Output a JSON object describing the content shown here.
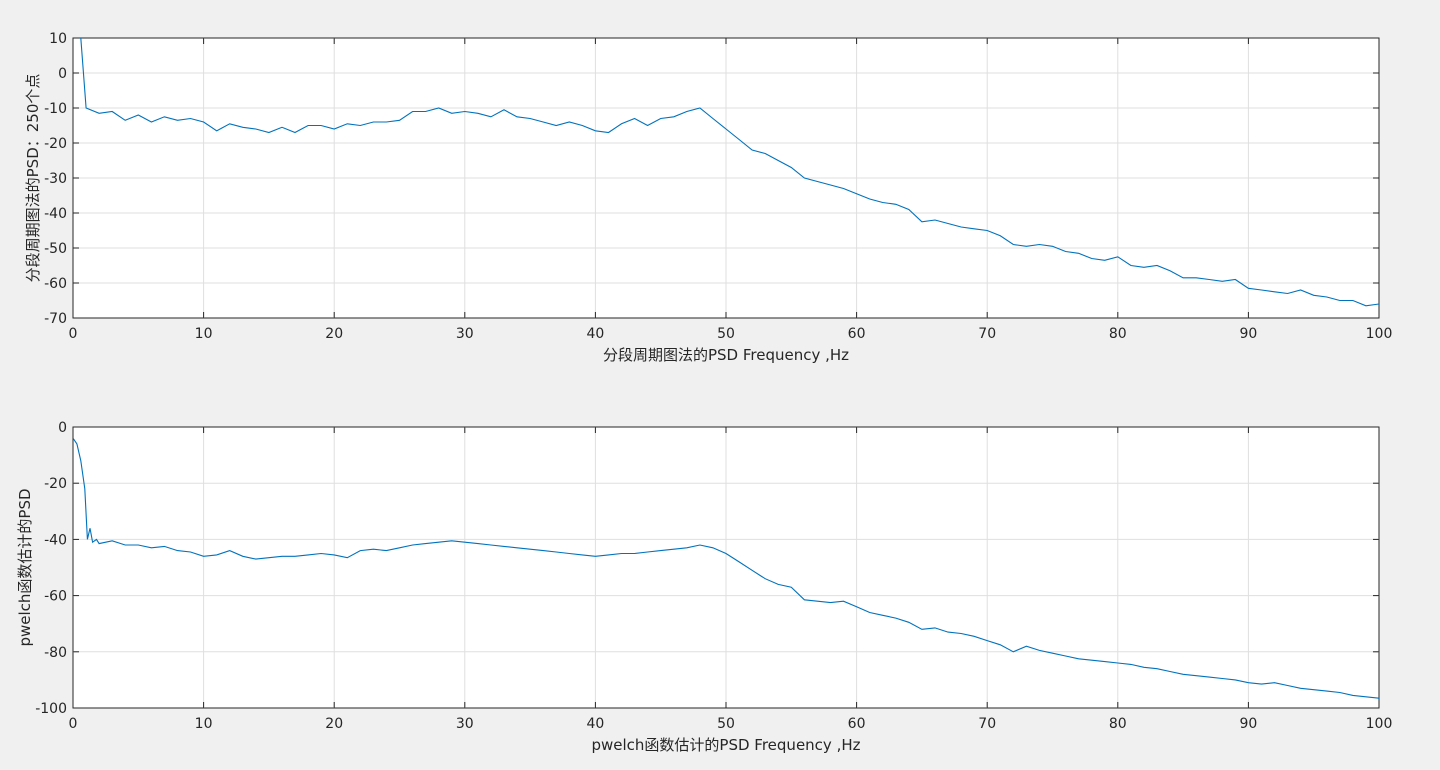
{
  "chart_data": [
    {
      "type": "line",
      "xlabel": "分段周期图法的PSD Frequency ,Hz",
      "ylabel": "分段周期图法的PSD：250个点",
      "xlim": [
        0,
        100
      ],
      "ylim": [
        -70,
        10
      ],
      "xticks": [
        0,
        10,
        20,
        30,
        40,
        50,
        60,
        70,
        80,
        90,
        100
      ],
      "yticks": [
        -70,
        -60,
        -50,
        -40,
        -30,
        -20,
        -10,
        0,
        10
      ],
      "grid": true,
      "color": "#0072bd",
      "series": [
        {
          "x": [
            0.6,
            1,
            2,
            3,
            4,
            5,
            6,
            7,
            8,
            9,
            10,
            11,
            12,
            13,
            14,
            15,
            16,
            17,
            18,
            19,
            20,
            21,
            22,
            23,
            24,
            25,
            26,
            27,
            28,
            29,
            30,
            31,
            32,
            33,
            34,
            35,
            36,
            37,
            38,
            39,
            40,
            41,
            42,
            43,
            44,
            45,
            46,
            47,
            48,
            49,
            50,
            51,
            52,
            53,
            54,
            55,
            56,
            57,
            58,
            59,
            60,
            61,
            62,
            63,
            64,
            65,
            66,
            67,
            68,
            69,
            70,
            71,
            72,
            73,
            74,
            75,
            76,
            77,
            78,
            79,
            80,
            81,
            82,
            83,
            84,
            85,
            86,
            87,
            88,
            89,
            90,
            91,
            92,
            93,
            94,
            95,
            96,
            97,
            98,
            99,
            100
          ],
          "y": [
            10,
            -10,
            -11.5,
            -11,
            -13.5,
            -12,
            -14,
            -12.5,
            -13.5,
            -13,
            -14,
            -16.5,
            -14.5,
            -15.5,
            -16,
            -17,
            -15.5,
            -17,
            -15,
            -15,
            -16,
            -14.5,
            -15,
            -14,
            -14,
            -13.5,
            -11,
            -11,
            -10,
            -11.5,
            -11,
            -11.5,
            -12.5,
            -10.5,
            -12.5,
            -13,
            -14,
            -15,
            -14,
            -15,
            -16.5,
            -17,
            -14.5,
            -13,
            -15,
            -13,
            -12.5,
            -11,
            -10,
            -13,
            -16,
            -19,
            -22,
            -23,
            -25,
            -27,
            -30,
            -31,
            -32,
            -33,
            -34.5,
            -36,
            -37,
            -37.5,
            -39,
            -42.5,
            -42,
            -43,
            -44,
            -44.5,
            -45,
            -46.5,
            -49,
            -49.5,
            -49,
            -49.5,
            -51,
            -51.5,
            -53,
            -53.5,
            -52.5,
            -55,
            -55.5,
            -55,
            -56.5,
            -58.5,
            -58.5,
            -59,
            -59.5,
            -59,
            -61.5,
            -62,
            -62.5,
            -63,
            -62,
            -63.5,
            -64,
            -65,
            -65,
            -66.5,
            -66
          ]
        }
      ]
    },
    {
      "type": "line",
      "xlabel": "pwelch函数估计的PSD Frequency ,Hz",
      "ylabel": "pwelch函数估计的PSD",
      "xlim": [
        0,
        100
      ],
      "ylim": [
        -100,
        0
      ],
      "xticks": [
        0,
        10,
        20,
        30,
        40,
        50,
        60,
        70,
        80,
        90,
        100
      ],
      "yticks": [
        -100,
        -80,
        -60,
        -40,
        -20,
        0
      ],
      "grid": true,
      "color": "#0072bd",
      "series": [
        {
          "x": [
            0,
            0.3,
            0.6,
            0.9,
            1.1,
            1.3,
            1.5,
            1.8,
            2,
            3,
            4,
            5,
            6,
            7,
            8,
            9,
            10,
            11,
            12,
            13,
            14,
            15,
            16,
            17,
            18,
            19,
            20,
            21,
            22,
            23,
            24,
            25,
            26,
            27,
            28,
            29,
            30,
            31,
            32,
            33,
            34,
            35,
            36,
            37,
            38,
            39,
            40,
            41,
            42,
            43,
            44,
            45,
            46,
            47,
            48,
            49,
            50,
            51,
            52,
            53,
            54,
            55,
            56,
            57,
            58,
            59,
            60,
            61,
            62,
            63,
            64,
            65,
            66,
            67,
            68,
            69,
            70,
            71,
            72,
            73,
            74,
            75,
            76,
            77,
            78,
            79,
            80,
            81,
            82,
            83,
            84,
            85,
            86,
            87,
            88,
            89,
            90,
            91,
            92,
            93,
            94,
            95,
            96,
            97,
            98,
            99,
            100
          ],
          "y": [
            -4,
            -6,
            -12,
            -22,
            -40,
            -36,
            -41,
            -40,
            -41.5,
            -40.5,
            -42,
            -42,
            -43,
            -42.5,
            -44,
            -44.5,
            -46,
            -45.5,
            -44,
            -46,
            -47,
            -46.5,
            -46,
            -46,
            -45.5,
            -45,
            -45.5,
            -46.5,
            -44,
            -43.5,
            -44,
            -43,
            -42,
            -41.5,
            -41,
            -40.5,
            -41,
            -41.5,
            -42,
            -42.5,
            -43,
            -43.5,
            -44,
            -44.5,
            -45,
            -45.5,
            -46,
            -45.5,
            -45,
            -45,
            -44.5,
            -44,
            -43.5,
            -43,
            -42,
            -43,
            -45,
            -48,
            -51,
            -54,
            -56,
            -57,
            -61.5,
            -62,
            -62.5,
            -62,
            -64,
            -66,
            -67,
            -68,
            -69.5,
            -72,
            -71.5,
            -73,
            -73.5,
            -74.5,
            -76,
            -77.5,
            -80,
            -78,
            -79.5,
            -80.5,
            -81.5,
            -82.5,
            -83,
            -83.5,
            -84,
            -84.5,
            -85.5,
            -86,
            -87,
            -88,
            -88.5,
            -89,
            -89.5,
            -90,
            -91,
            -91.5,
            -91,
            -92,
            -93,
            -93.5,
            -94,
            -94.5,
            -95.5,
            -96,
            -96.5
          ]
        }
      ]
    }
  ]
}
